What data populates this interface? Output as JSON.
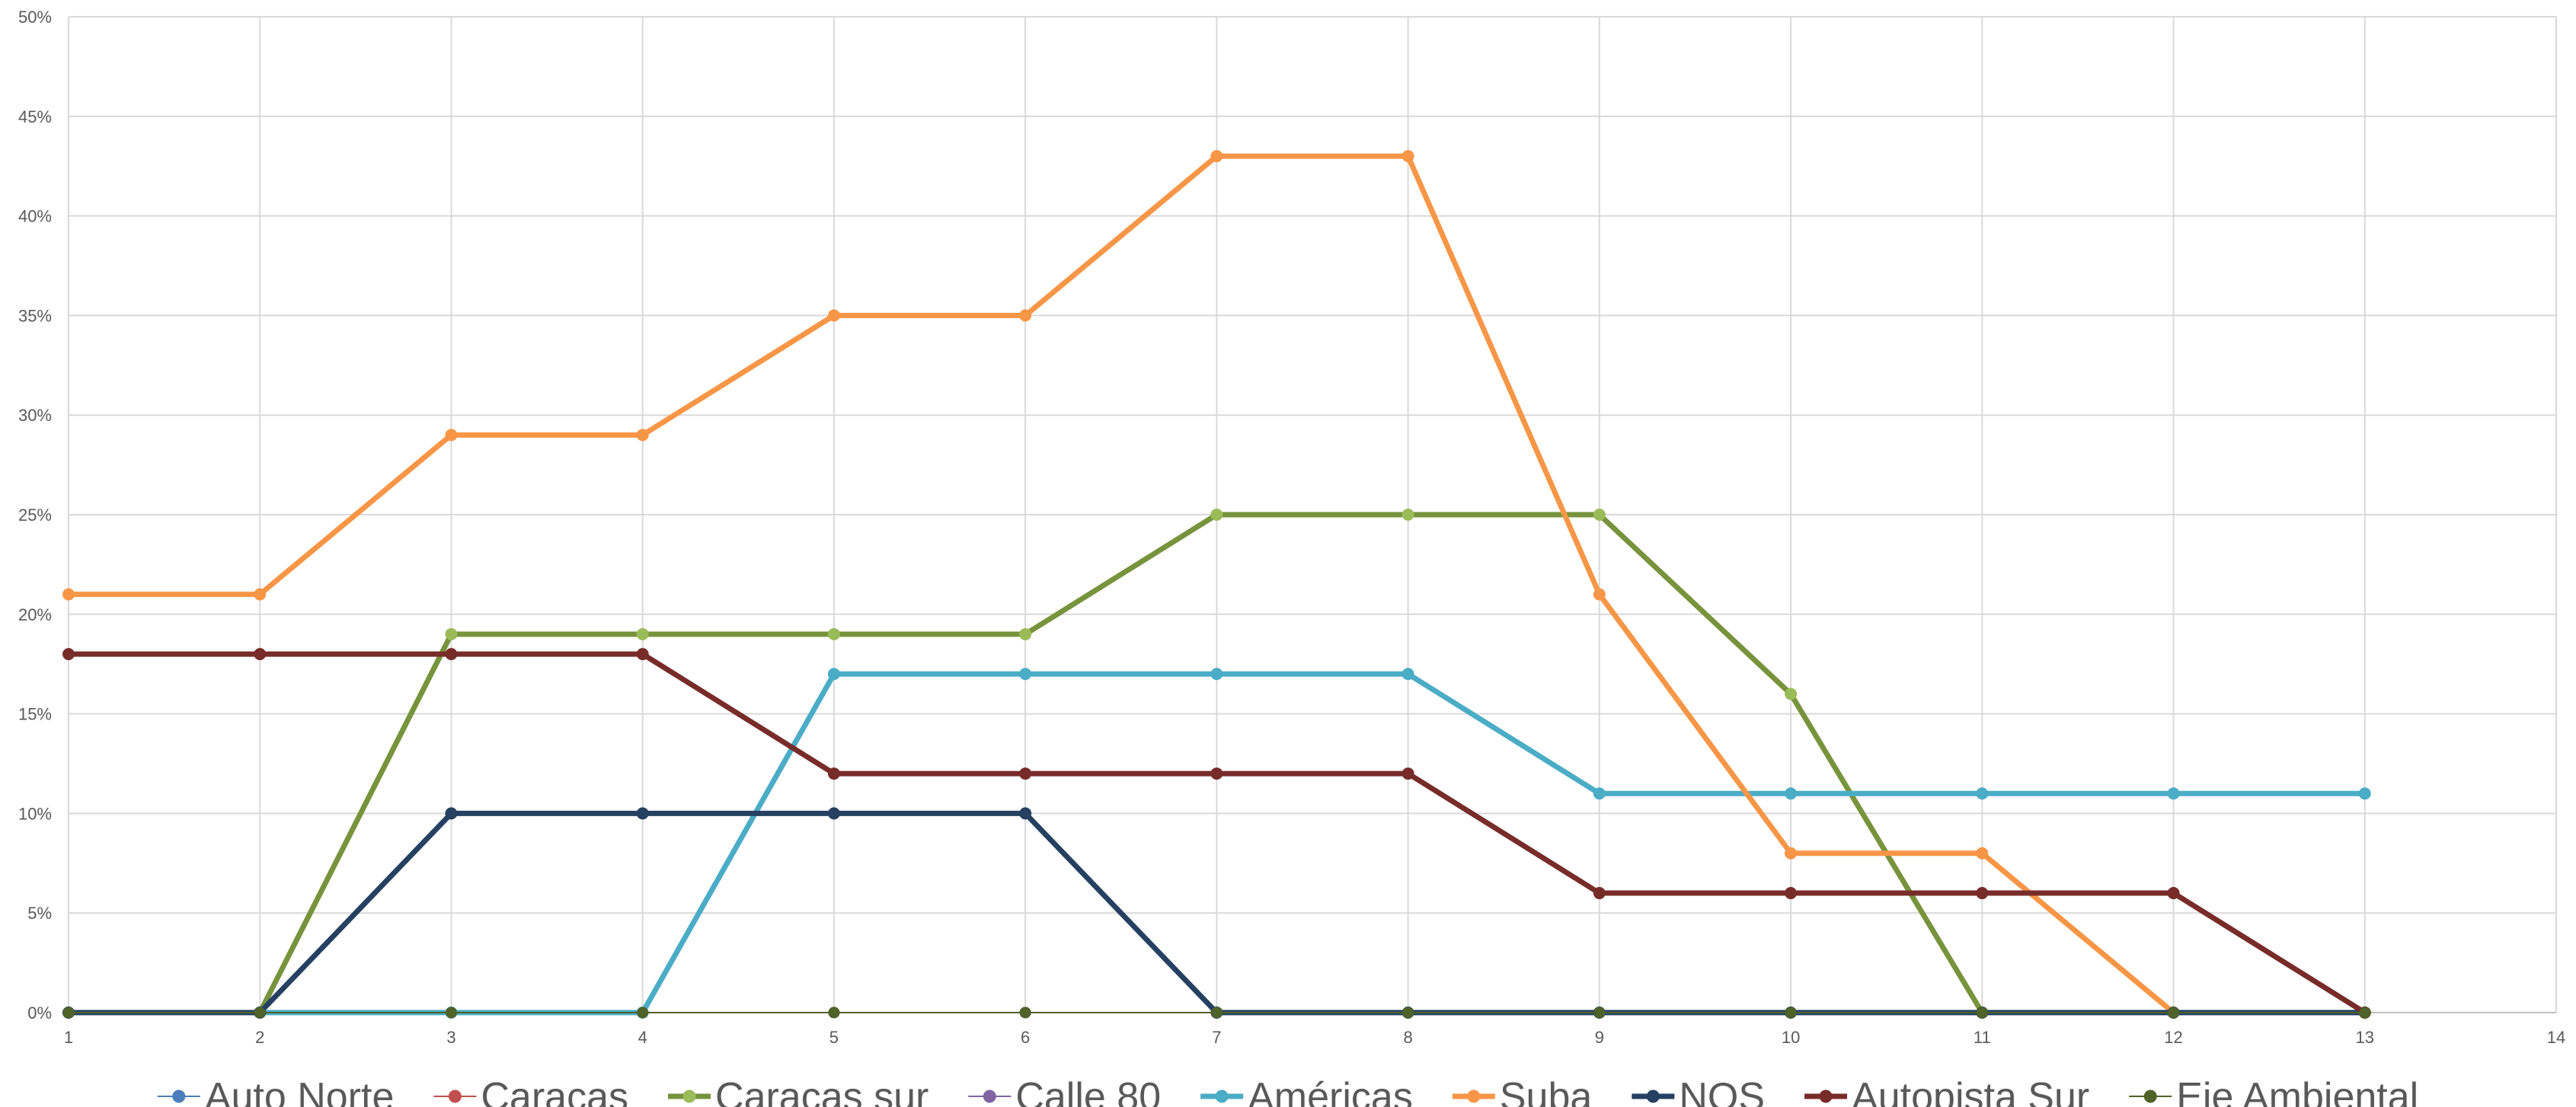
{
  "chart_data": {
    "type": "line",
    "title": "",
    "xlabel": "",
    "ylabel": "",
    "xlim": [
      1,
      14
    ],
    "ylim": [
      0,
      50
    ],
    "x_ticks": [
      1,
      2,
      3,
      4,
      5,
      6,
      7,
      8,
      9,
      10,
      11,
      12,
      13,
      14
    ],
    "y_ticks": [
      0,
      5,
      10,
      15,
      20,
      25,
      30,
      35,
      40,
      45,
      50
    ],
    "y_tick_suffix": "%",
    "grid": true,
    "legend_position": "bottom",
    "x": [
      1,
      2,
      3,
      4,
      5,
      6,
      7,
      8,
      9,
      10,
      11,
      12,
      13
    ],
    "series": [
      {
        "name": "Auto Norte",
        "color": "#4a7ebb",
        "width": 2,
        "values": [
          0,
          0,
          0,
          0,
          0,
          0,
          0,
          0,
          0,
          0,
          0,
          0,
          0
        ]
      },
      {
        "name": "Caracas",
        "color": "#c0504d",
        "width": 2,
        "values": [
          0,
          0,
          0,
          0,
          0,
          0,
          0,
          0,
          0,
          0,
          0,
          0,
          0
        ]
      },
      {
        "name": "Caracas sur",
        "color": "#77933c",
        "marker": "#9bbb59",
        "width": 7,
        "values": [
          0,
          0,
          19,
          19,
          19,
          19,
          25,
          25,
          25,
          16,
          0,
          0,
          0
        ]
      },
      {
        "name": "Calle 80",
        "color": "#8064a2",
        "width": 2,
        "values": [
          0,
          0,
          0,
          0,
          0,
          0,
          0,
          0,
          0,
          0,
          0,
          0,
          0
        ]
      },
      {
        "name": "Américas",
        "color": "#4bacc6",
        "width": 7,
        "values": [
          0,
          0,
          0,
          0,
          17,
          17,
          17,
          17,
          11,
          11,
          11,
          11,
          11
        ]
      },
      {
        "name": "Suba",
        "color": "#f79646",
        "width": 7,
        "values": [
          21,
          21,
          29,
          29,
          35,
          35,
          43,
          43,
          21,
          8,
          8,
          0,
          null
        ]
      },
      {
        "name": "NQS",
        "color": "#254061",
        "width": 7,
        "values": [
          0,
          0,
          10,
          10,
          10,
          10,
          0,
          0,
          0,
          0,
          0,
          0,
          0
        ]
      },
      {
        "name": "Autopista Sur",
        "color": "#772c2a",
        "width": 7,
        "values": [
          18,
          18,
          18,
          18,
          12,
          12,
          12,
          12,
          6,
          6,
          6,
          6,
          0
        ]
      },
      {
        "name": "Eje Ambiental",
        "color": "#4f6228",
        "width": 2,
        "values": [
          0,
          0,
          0,
          0,
          0,
          0,
          0,
          0,
          0,
          0,
          0,
          0,
          0
        ]
      }
    ]
  }
}
